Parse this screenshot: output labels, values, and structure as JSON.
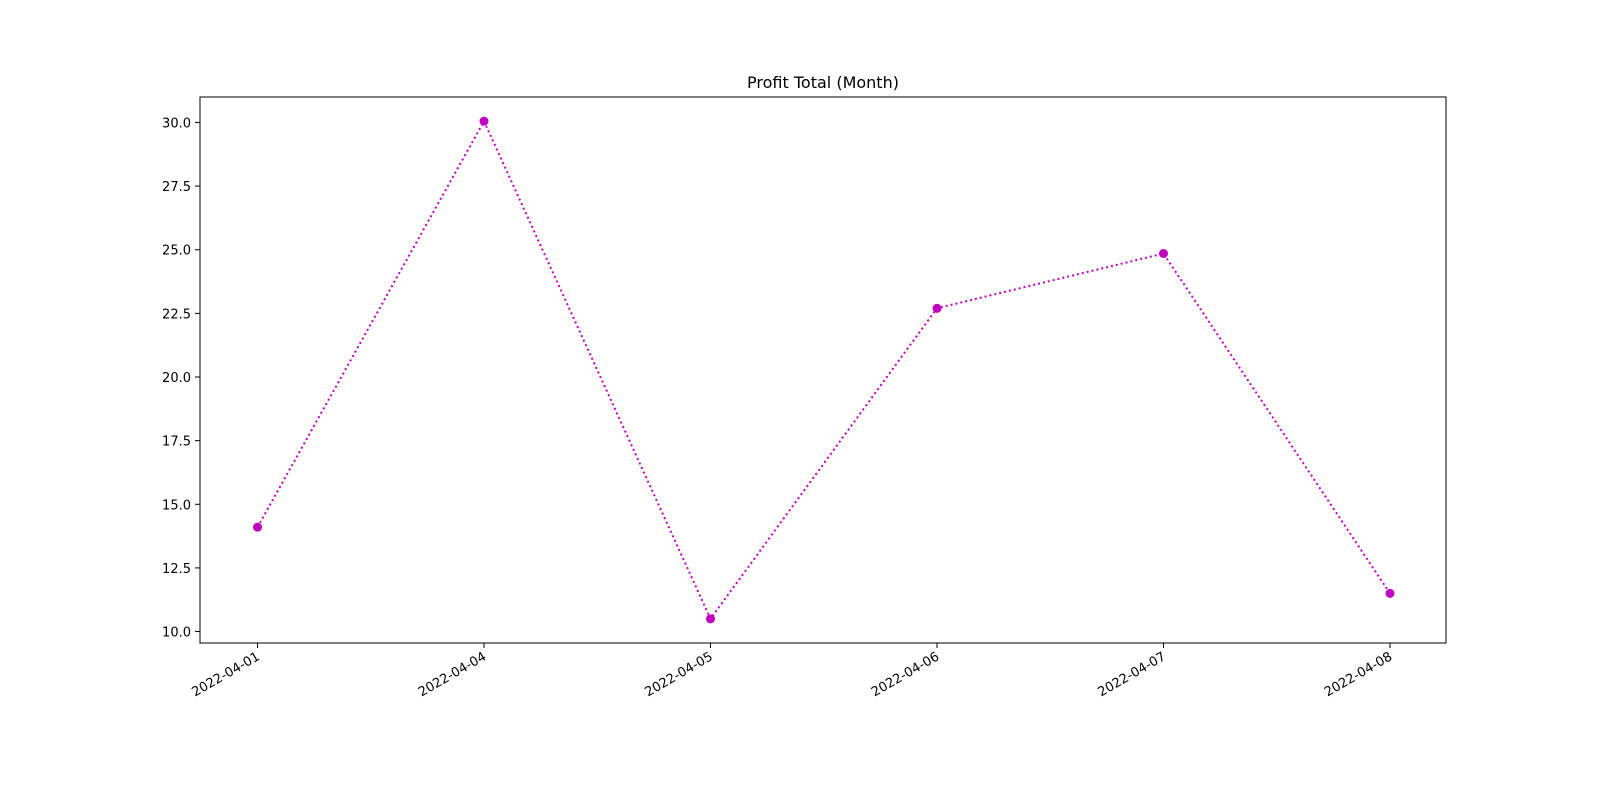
{
  "chart_data": {
    "type": "line",
    "title": "Profit Total (Month)",
    "xlabel": "",
    "ylabel": "",
    "categories": [
      "2022-04-01",
      "2022-04-04",
      "2022-04-05",
      "2022-04-06",
      "2022-04-07",
      "2022-04-08"
    ],
    "series": [
      {
        "values": [
          14.1,
          30.05,
          10.5,
          22.7,
          24.85,
          11.5
        ],
        "color": "#bf00bf",
        "line_style": "dotted",
        "marker": "circle"
      }
    ],
    "ylim": [
      9.55,
      31.0
    ],
    "yticks": [
      "10.0",
      "12.5",
      "15.0",
      "17.5",
      "20.0",
      "22.5",
      "25.0",
      "27.5",
      "30.0"
    ],
    "grid": false,
    "legend": "none"
  }
}
